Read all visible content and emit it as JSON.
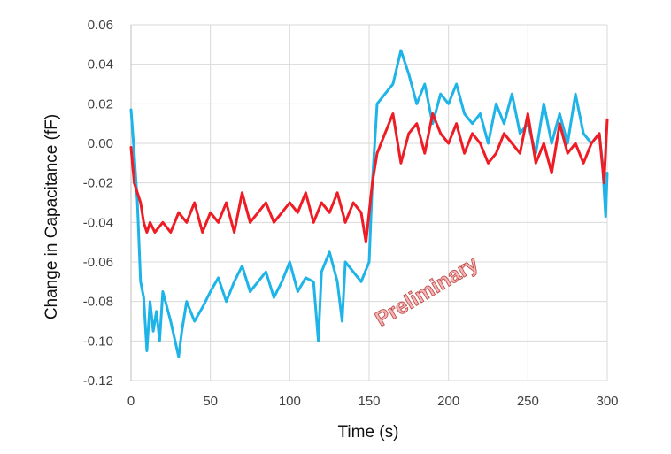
{
  "chart_data": {
    "type": "line",
    "title": "",
    "xlabel": "Time (s)",
    "ylabel": "Change in Capacitance (fF)",
    "xlim": [
      0,
      300
    ],
    "ylim": [
      -0.12,
      0.06
    ],
    "x_ticks": [
      0,
      50,
      100,
      150,
      200,
      250,
      300
    ],
    "y_ticks": [
      -0.12,
      -0.1,
      -0.08,
      -0.06,
      -0.04,
      -0.02,
      0.0,
      0.02,
      0.04,
      0.06
    ],
    "x_tick_labels": [
      "0",
      "50",
      "100",
      "150",
      "200",
      "250",
      "300"
    ],
    "y_tick_labels": [
      "-0.12",
      "-0.10",
      "-0.08",
      "-0.06",
      "-0.04",
      "-0.02",
      "0.00",
      "0.02",
      "0.04",
      "0.06"
    ],
    "grid": true,
    "legend": "none",
    "annotation": "Preliminary",
    "series": [
      {
        "color": "#1EB4E8",
        "x": [
          0,
          2,
          4,
          6,
          8,
          10,
          12,
          14,
          16,
          18,
          20,
          25,
          30,
          32,
          35,
          40,
          45,
          50,
          55,
          60,
          65,
          70,
          75,
          80,
          85,
          90,
          95,
          100,
          105,
          110,
          115,
          118,
          120,
          125,
          130,
          133,
          135,
          140,
          145,
          150,
          152,
          155,
          160,
          165,
          170,
          175,
          180,
          185,
          190,
          195,
          200,
          205,
          210,
          215,
          220,
          225,
          230,
          235,
          240,
          245,
          250,
          255,
          260,
          265,
          270,
          275,
          280,
          285,
          290,
          295,
          297,
          299,
          300
        ],
        "y": [
          0.017,
          -0.005,
          -0.03,
          -0.07,
          -0.078,
          -0.105,
          -0.08,
          -0.095,
          -0.085,
          -0.1,
          -0.075,
          -0.09,
          -0.108,
          -0.095,
          -0.08,
          -0.09,
          -0.083,
          -0.075,
          -0.068,
          -0.08,
          -0.07,
          -0.062,
          -0.075,
          -0.07,
          -0.065,
          -0.078,
          -0.07,
          -0.06,
          -0.075,
          -0.068,
          -0.07,
          -0.1,
          -0.065,
          -0.055,
          -0.07,
          -0.09,
          -0.06,
          -0.065,
          -0.07,
          -0.06,
          -0.02,
          0.02,
          0.025,
          0.03,
          0.047,
          0.035,
          0.02,
          0.03,
          0.01,
          0.025,
          0.02,
          0.03,
          0.015,
          0.01,
          0.015,
          0.0,
          0.02,
          0.01,
          0.025,
          0.005,
          0.01,
          -0.005,
          0.02,
          0.0,
          0.015,
          0.0,
          0.025,
          0.005,
          0.0,
          0.005,
          -0.01,
          -0.037,
          -0.015
        ]
      },
      {
        "color": "#EE1C24",
        "x": [
          0,
          2,
          4,
          6,
          8,
          10,
          12,
          15,
          20,
          25,
          30,
          35,
          40,
          45,
          50,
          55,
          60,
          65,
          70,
          75,
          80,
          85,
          90,
          95,
          100,
          105,
          110,
          115,
          120,
          125,
          130,
          135,
          140,
          145,
          148,
          150,
          152,
          155,
          160,
          165,
          170,
          175,
          180,
          185,
          190,
          195,
          200,
          205,
          210,
          215,
          220,
          225,
          230,
          235,
          240,
          245,
          250,
          255,
          260,
          265,
          270,
          275,
          280,
          285,
          290,
          295,
          298,
          300
        ],
        "y": [
          -0.002,
          -0.02,
          -0.025,
          -0.03,
          -0.04,
          -0.045,
          -0.04,
          -0.045,
          -0.04,
          -0.045,
          -0.035,
          -0.04,
          -0.03,
          -0.045,
          -0.035,
          -0.04,
          -0.03,
          -0.045,
          -0.025,
          -0.04,
          -0.035,
          -0.03,
          -0.04,
          -0.035,
          -0.03,
          -0.035,
          -0.025,
          -0.04,
          -0.03,
          -0.035,
          -0.025,
          -0.04,
          -0.03,
          -0.035,
          -0.05,
          -0.035,
          -0.02,
          -0.005,
          0.005,
          0.015,
          -0.01,
          0.005,
          0.01,
          -0.005,
          0.015,
          0.005,
          0.0,
          0.01,
          -0.005,
          0.005,
          0.0,
          -0.01,
          -0.005,
          0.005,
          0.0,
          -0.005,
          0.015,
          -0.01,
          0.0,
          -0.015,
          0.01,
          -0.005,
          0.0,
          -0.01,
          0.0,
          0.005,
          -0.02,
          0.012
        ]
      }
    ]
  }
}
